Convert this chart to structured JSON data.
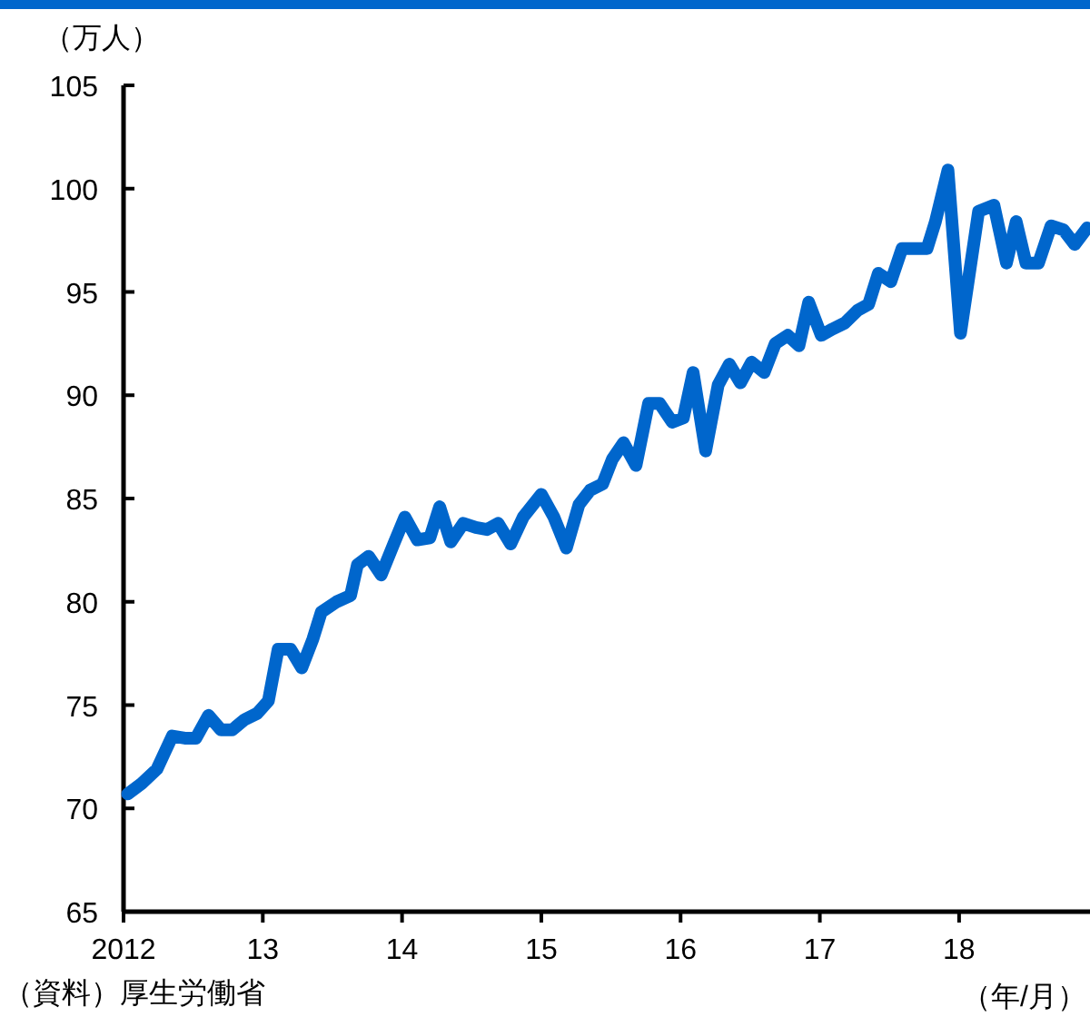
{
  "chart_data": {
    "type": "line",
    "ylabel": "（万人）",
    "xlabel": "（年/月）",
    "annotations": [
      "（資料）厚生労働省"
    ],
    "series": [
      {
        "color": "#0066cc",
        "x": [
          2012.03,
          2012.13,
          2012.24,
          2012.35,
          2012.44,
          2012.52,
          2012.61,
          2012.7,
          2012.78,
          2012.87,
          2012.96,
          2013.04,
          2013.11,
          2013.2,
          2013.28,
          2013.36,
          2013.42,
          2013.53,
          2013.63,
          2013.68,
          2013.76,
          2013.85,
          2013.94,
          2014.02,
          2014.11,
          2014.2,
          2014.27,
          2014.35,
          2014.44,
          2014.53,
          2014.61,
          2014.69,
          2014.78,
          2014.87,
          2015.0,
          2015.09,
          2015.18,
          2015.27,
          2015.35,
          2015.44,
          2015.51,
          2015.59,
          2015.68,
          2015.77,
          2015.85,
          2015.94,
          2016.02,
          2016.09,
          2016.18,
          2016.27,
          2016.35,
          2016.43,
          2016.51,
          2016.6,
          2016.68,
          2016.77,
          2016.85,
          2016.92,
          2017.01,
          2017.09,
          2017.18,
          2017.27,
          2017.35,
          2017.42,
          2017.51,
          2017.59,
          2017.68,
          2017.77,
          2017.83,
          2017.92,
          2018.01,
          2018.14,
          2018.25,
          2018.34,
          2018.41,
          2018.48,
          2018.57,
          2018.66,
          2018.75,
          2018.83,
          2018.92
        ],
        "values": [
          70.7,
          71.2,
          71.9,
          73.5,
          73.4,
          73.4,
          74.5,
          73.8,
          73.8,
          74.3,
          74.6,
          75.2,
          77.7,
          77.7,
          76.8,
          78.2,
          79.5,
          80.0,
          80.3,
          81.8,
          82.2,
          81.3,
          82.8,
          84.1,
          83.0,
          83.1,
          84.6,
          82.9,
          83.8,
          83.6,
          83.5,
          83.8,
          82.8,
          84.1,
          85.2,
          84.1,
          82.6,
          84.7,
          85.4,
          85.7,
          86.9,
          87.7,
          86.6,
          89.6,
          89.6,
          88.7,
          88.9,
          91.1,
          87.3,
          90.5,
          91.5,
          90.6,
          91.6,
          91.1,
          92.5,
          92.9,
          92.4,
          94.5,
          92.9,
          93.2,
          93.5,
          94.1,
          94.4,
          95.9,
          95.5,
          97.1,
          97.1,
          97.1,
          98.4,
          100.9,
          93.0,
          98.9,
          99.2,
          96.4,
          98.4,
          96.4,
          96.4,
          98.2,
          98.0,
          97.3,
          98.1
        ]
      }
    ],
    "xlim": [
      2012,
      2018.94
    ],
    "xticks": [
      {
        "value": 2012,
        "label": "2012"
      },
      {
        "value": 2013,
        "label": "13"
      },
      {
        "value": 2014,
        "label": "14"
      },
      {
        "value": 2015,
        "label": "15"
      },
      {
        "value": 2016,
        "label": "16"
      },
      {
        "value": 2017,
        "label": "17"
      },
      {
        "value": 2018,
        "label": "18"
      }
    ],
    "ylim": [
      65,
      105
    ],
    "yticks": [
      65,
      70,
      75,
      80,
      85,
      90,
      95,
      100,
      105
    ],
    "grid": false,
    "marker": "none",
    "line_style": "solid"
  }
}
